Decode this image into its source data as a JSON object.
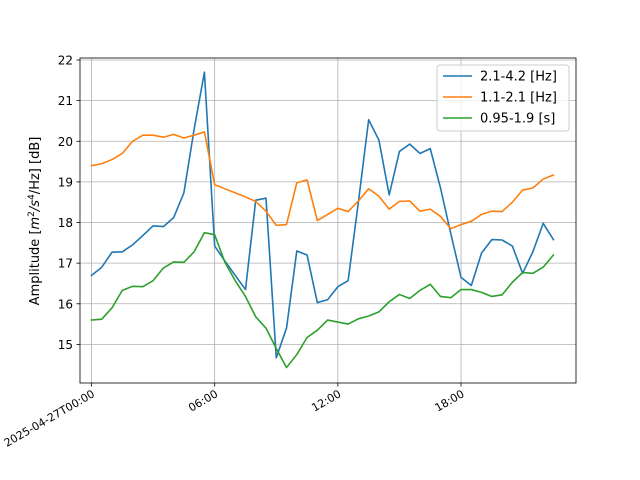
{
  "chart_data": {
    "type": "line",
    "title": "",
    "xlabel": "",
    "ylabel": "Amplitude [m²/s⁴/Hz] [dB]",
    "ylabel_parts": {
      "prefix": "Amplitude [",
      "base1": "m",
      "sup1": "2",
      "sep1": "/",
      "base2": "s",
      "sup2": "4",
      "suffix": "/Hz] [dB]"
    },
    "x_start": "2025-04-27T00:00",
    "x_step_minutes": 30,
    "xlim_hours": [
      -0.56,
      23.6
    ],
    "ylim": [
      14.05,
      22.05
    ],
    "x_ticks": [
      {
        "hours": 0,
        "label": "2025-04-27T00:00"
      },
      {
        "hours": 6,
        "label": "06:00"
      },
      {
        "hours": 12,
        "label": "12:00"
      },
      {
        "hours": 18,
        "label": "18:00"
      }
    ],
    "y_ticks": [
      15,
      16,
      17,
      18,
      19,
      20,
      21,
      22
    ],
    "grid": true,
    "legend_position": "top-right",
    "series": [
      {
        "name": "2.1-4.2 [Hz]",
        "color": "#1f77b4",
        "values": [
          16.7,
          16.9,
          17.27,
          17.28,
          17.45,
          17.68,
          17.92,
          17.9,
          18.12,
          18.73,
          20.3,
          21.7,
          17.42,
          17.05,
          16.7,
          16.35,
          18.55,
          18.6,
          14.67,
          15.4,
          17.3,
          17.2,
          16.03,
          16.1,
          16.42,
          16.57,
          18.5,
          20.53,
          20.03,
          18.68,
          19.75,
          19.93,
          19.7,
          19.82,
          18.85,
          17.73,
          16.65,
          16.45,
          17.25,
          17.58,
          17.57,
          17.42,
          16.75,
          17.28,
          17.98,
          17.58
        ]
      },
      {
        "name": "1.1-2.1 [Hz]",
        "color": "#ff7f0e",
        "values": [
          19.4,
          19.45,
          19.55,
          19.7,
          20.0,
          20.15,
          20.15,
          20.1,
          20.17,
          20.08,
          20.15,
          20.23,
          18.93,
          18.83,
          18.73,
          18.63,
          18.52,
          18.28,
          17.93,
          17.95,
          18.98,
          19.05,
          18.05,
          18.2,
          18.35,
          18.27,
          18.53,
          18.83,
          18.65,
          18.33,
          18.52,
          18.53,
          18.28,
          18.33,
          18.15,
          17.85,
          17.95,
          18.03,
          18.2,
          18.28,
          18.27,
          18.5,
          18.8,
          18.85,
          19.07,
          19.17
        ]
      },
      {
        "name": "0.95-1.9 [s]",
        "color": "#2ca02c",
        "values": [
          15.6,
          15.62,
          15.9,
          16.33,
          16.43,
          16.42,
          16.57,
          16.88,
          17.03,
          17.02,
          17.28,
          17.75,
          17.7,
          17.02,
          16.57,
          16.18,
          15.68,
          15.4,
          14.9,
          14.43,
          14.75,
          15.17,
          15.35,
          15.6,
          15.55,
          15.5,
          15.63,
          15.7,
          15.8,
          16.05,
          16.23,
          16.13,
          16.33,
          16.48,
          16.18,
          16.15,
          16.35,
          16.35,
          16.28,
          16.18,
          16.22,
          16.53,
          16.77,
          16.75,
          16.9,
          17.2
        ]
      }
    ]
  }
}
